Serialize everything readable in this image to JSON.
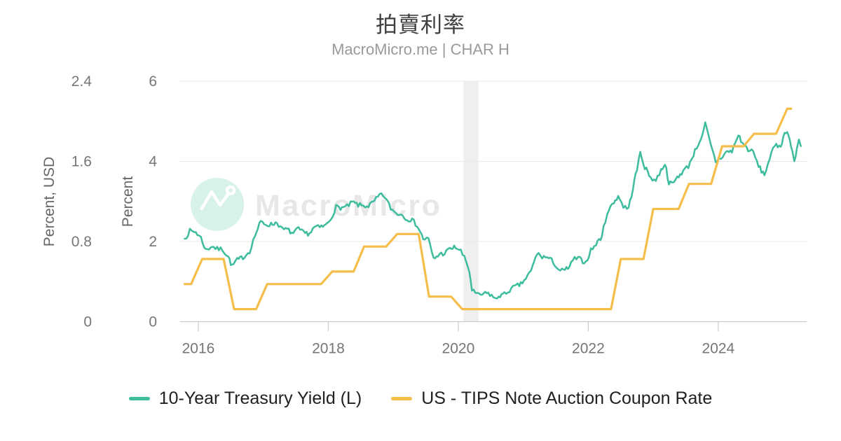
{
  "header": {
    "title": "拍賣利率",
    "subtitle": "MacroMicro.me | CHAR H"
  },
  "watermark": {
    "text": "MacroMicro"
  },
  "colors": {
    "treasury_line": "#3dbc9e",
    "tips_line": "#f5bd4a",
    "gridline": "#e8e8e8",
    "axis_line": "#cbcbcb",
    "tick_label": "#767676",
    "axis_title": "#666666",
    "title": "#3f3f3f",
    "subtitle": "#9a9a9a",
    "legend_text": "#212121",
    "recession_band": "#efefef",
    "watermark_text": "#e7e7e7",
    "watermark_circle": "#d7f2ea"
  },
  "chart_data": {
    "type": "line",
    "title": "拍賣利率",
    "subtitle": "MacroMicro.me | CHAR H",
    "grid": "horizontal",
    "legend_position": "bottom",
    "x_axis": {
      "ticks": [
        2016,
        2018,
        2020,
        2022,
        2024
      ],
      "range": [
        2015.72,
        2025.36
      ]
    },
    "y_axes": [
      {
        "side": "left-outer",
        "title": "Percent, USD",
        "ticks": [
          0,
          0.8,
          1.6,
          2.4
        ],
        "tick_labels": [
          "0",
          "0.8",
          "1.6",
          "2.4"
        ],
        "range": [
          0,
          2.4
        ]
      },
      {
        "side": "left-inner",
        "title": "Percent",
        "ticks": [
          0,
          2,
          4,
          6
        ],
        "tick_labels": [
          "0",
          "2",
          "4",
          "6"
        ],
        "range": [
          0,
          6
        ]
      }
    ],
    "recession_band": {
      "from": 2020.08,
      "to": 2020.31
    },
    "series": [
      {
        "name": "10-Year Treasury Yield (L)",
        "color": "#3dbc9e",
        "axis": 1,
        "unit": "Percent",
        "style": "noisy-daily",
        "points": [
          [
            2015.79,
            2.07
          ],
          [
            2015.87,
            2.26
          ],
          [
            2015.96,
            2.24
          ],
          [
            2016.04,
            2.09
          ],
          [
            2016.12,
            1.78
          ],
          [
            2016.21,
            1.89
          ],
          [
            2016.29,
            1.81
          ],
          [
            2016.37,
            1.81
          ],
          [
            2016.46,
            1.62
          ],
          [
            2016.52,
            1.38
          ],
          [
            2016.58,
            1.52
          ],
          [
            2016.62,
            1.55
          ],
          [
            2016.71,
            1.63
          ],
          [
            2016.79,
            1.76
          ],
          [
            2016.87,
            2.14
          ],
          [
            2016.96,
            2.49
          ],
          [
            2017.04,
            2.43
          ],
          [
            2017.12,
            2.42
          ],
          [
            2017.21,
            2.48
          ],
          [
            2017.29,
            2.3
          ],
          [
            2017.37,
            2.3
          ],
          [
            2017.46,
            2.19
          ],
          [
            2017.54,
            2.32
          ],
          [
            2017.62,
            2.21
          ],
          [
            2017.71,
            2.2
          ],
          [
            2017.79,
            2.36
          ],
          [
            2017.87,
            2.35
          ],
          [
            2017.96,
            2.4
          ],
          [
            2018.04,
            2.58
          ],
          [
            2018.12,
            2.86
          ],
          [
            2018.21,
            2.84
          ],
          [
            2018.29,
            2.87
          ],
          [
            2018.37,
            2.98
          ],
          [
            2018.46,
            2.91
          ],
          [
            2018.54,
            2.89
          ],
          [
            2018.62,
            2.89
          ],
          [
            2018.71,
            3.0
          ],
          [
            2018.79,
            3.16
          ],
          [
            2018.87,
            3.12
          ],
          [
            2018.96,
            2.83
          ],
          [
            2019.04,
            2.71
          ],
          [
            2019.12,
            2.68
          ],
          [
            2019.21,
            2.57
          ],
          [
            2019.29,
            2.53
          ],
          [
            2019.37,
            2.4
          ],
          [
            2019.46,
            2.07
          ],
          [
            2019.54,
            2.06
          ],
          [
            2019.62,
            1.56
          ],
          [
            2019.71,
            1.68
          ],
          [
            2019.79,
            1.71
          ],
          [
            2019.87,
            1.81
          ],
          [
            2019.96,
            1.86
          ],
          [
            2020.04,
            1.76
          ],
          [
            2020.12,
            1.5
          ],
          [
            2020.17,
            1.26
          ],
          [
            2020.21,
            0.8
          ],
          [
            2020.29,
            0.66
          ],
          [
            2020.37,
            0.68
          ],
          [
            2020.46,
            0.71
          ],
          [
            2020.54,
            0.62
          ],
          [
            2020.58,
            0.54
          ],
          [
            2020.62,
            0.65
          ],
          [
            2020.71,
            0.68
          ],
          [
            2020.79,
            0.79
          ],
          [
            2020.87,
            0.87
          ],
          [
            2020.96,
            0.93
          ],
          [
            2021.04,
            1.08
          ],
          [
            2021.12,
            1.26
          ],
          [
            2021.21,
            1.7
          ],
          [
            2021.29,
            1.62
          ],
          [
            2021.37,
            1.6
          ],
          [
            2021.46,
            1.5
          ],
          [
            2021.54,
            1.3
          ],
          [
            2021.62,
            1.26
          ],
          [
            2021.71,
            1.37
          ],
          [
            2021.79,
            1.58
          ],
          [
            2021.87,
            1.56
          ],
          [
            2021.96,
            1.47
          ],
          [
            2022.04,
            1.78
          ],
          [
            2022.12,
            1.93
          ],
          [
            2022.21,
            2.14
          ],
          [
            2022.29,
            2.72
          ],
          [
            2022.37,
            2.92
          ],
          [
            2022.46,
            3.14
          ],
          [
            2022.54,
            2.88
          ],
          [
            2022.62,
            2.82
          ],
          [
            2022.71,
            3.52
          ],
          [
            2022.75,
            3.8
          ],
          [
            2022.8,
            4.22
          ],
          [
            2022.84,
            4.02
          ],
          [
            2022.87,
            3.85
          ],
          [
            2022.96,
            3.6
          ],
          [
            2023.04,
            3.52
          ],
          [
            2023.12,
            3.78
          ],
          [
            2023.18,
            3.95
          ],
          [
            2023.24,
            3.48
          ],
          [
            2023.29,
            3.42
          ],
          [
            2023.37,
            3.6
          ],
          [
            2023.46,
            3.76
          ],
          [
            2023.54,
            3.88
          ],
          [
            2023.62,
            4.18
          ],
          [
            2023.71,
            4.5
          ],
          [
            2023.76,
            4.65
          ],
          [
            2023.8,
            4.93
          ],
          [
            2023.84,
            4.7
          ],
          [
            2023.87,
            4.48
          ],
          [
            2023.96,
            4.0
          ],
          [
            2024.04,
            4.08
          ],
          [
            2024.12,
            4.23
          ],
          [
            2024.21,
            4.25
          ],
          [
            2024.31,
            4.66
          ],
          [
            2024.37,
            4.46
          ],
          [
            2024.46,
            4.3
          ],
          [
            2024.54,
            4.22
          ],
          [
            2024.62,
            3.88
          ],
          [
            2024.71,
            3.66
          ],
          [
            2024.79,
            4.08
          ],
          [
            2024.87,
            4.38
          ],
          [
            2024.96,
            4.4
          ],
          [
            2025.02,
            4.68
          ],
          [
            2025.06,
            4.79
          ],
          [
            2025.1,
            4.52
          ],
          [
            2025.14,
            4.25
          ],
          [
            2025.17,
            3.95
          ],
          [
            2025.21,
            4.32
          ],
          [
            2025.24,
            4.52
          ],
          [
            2025.27,
            4.38
          ]
        ]
      },
      {
        "name": "US - TIPS Note Auction Coupon Rate",
        "color": "#f5bd4a",
        "axis": 0,
        "unit": "Percent, USD",
        "style": "straight",
        "points": [
          [
            2015.79,
            0.375
          ],
          [
            2015.89,
            0.375
          ],
          [
            2016.06,
            0.625
          ],
          [
            2016.22,
            0.625
          ],
          [
            2016.39,
            0.625
          ],
          [
            2016.55,
            0.125
          ],
          [
            2016.72,
            0.125
          ],
          [
            2016.89,
            0.125
          ],
          [
            2017.06,
            0.375
          ],
          [
            2017.22,
            0.375
          ],
          [
            2017.39,
            0.375
          ],
          [
            2017.55,
            0.375
          ],
          [
            2017.72,
            0.375
          ],
          [
            2017.89,
            0.375
          ],
          [
            2018.06,
            0.5
          ],
          [
            2018.22,
            0.5
          ],
          [
            2018.39,
            0.5
          ],
          [
            2018.55,
            0.75
          ],
          [
            2018.72,
            0.75
          ],
          [
            2018.89,
            0.75
          ],
          [
            2019.06,
            0.875
          ],
          [
            2019.22,
            0.875
          ],
          [
            2019.39,
            0.875
          ],
          [
            2019.55,
            0.25
          ],
          [
            2019.72,
            0.25
          ],
          [
            2019.89,
            0.25
          ],
          [
            2020.06,
            0.125
          ],
          [
            2020.55,
            0.125
          ],
          [
            2021.06,
            0.125
          ],
          [
            2021.55,
            0.125
          ],
          [
            2022.06,
            0.125
          ],
          [
            2022.35,
            0.125
          ],
          [
            2022.5,
            0.625
          ],
          [
            2022.72,
            0.625
          ],
          [
            2022.85,
            0.625
          ],
          [
            2023.0,
            1.125
          ],
          [
            2023.22,
            1.125
          ],
          [
            2023.39,
            1.125
          ],
          [
            2023.55,
            1.375
          ],
          [
            2023.72,
            1.375
          ],
          [
            2023.89,
            1.375
          ],
          [
            2024.06,
            1.75
          ],
          [
            2024.22,
            1.75
          ],
          [
            2024.39,
            1.75
          ],
          [
            2024.55,
            1.875
          ],
          [
            2024.72,
            1.875
          ],
          [
            2024.89,
            1.875
          ],
          [
            2025.06,
            2.125
          ],
          [
            2025.12,
            2.125
          ]
        ]
      }
    ]
  }
}
